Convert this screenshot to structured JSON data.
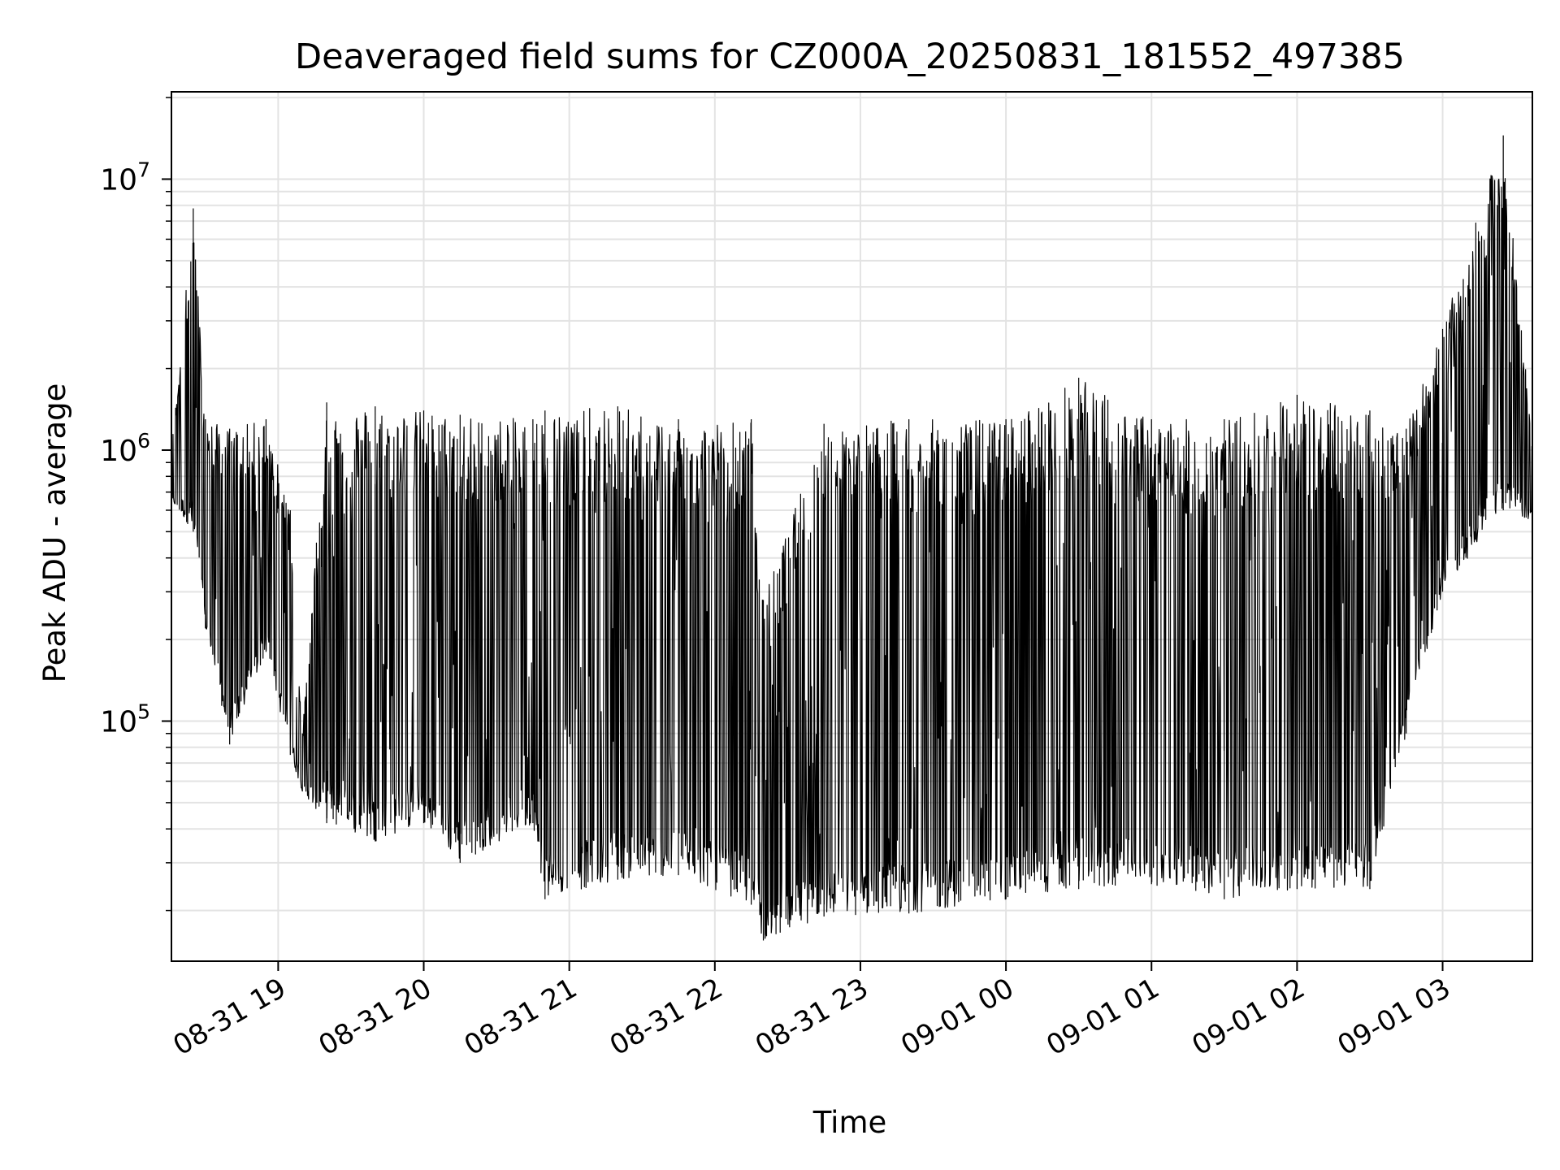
{
  "chart_data": {
    "type": "line",
    "title": "Deaveraged field sums for CZ000A_20250831_181552_497385",
    "xlabel": "Time",
    "ylabel": "Peak ADU - average",
    "yscale": "log",
    "grid": "on (major and minor)",
    "xlim": [
      "2025-08-31 18:16",
      "2025-09-01 03:37"
    ],
    "ylim": [
      13000,
      21000000
    ],
    "x_ticks": [
      {
        "label": "08-31 19",
        "time": "2025-08-31 19:00"
      },
      {
        "label": "08-31 20",
        "time": "2025-08-31 20:00"
      },
      {
        "label": "08-31 21",
        "time": "2025-08-31 21:00"
      },
      {
        "label": "08-31 22",
        "time": "2025-08-31 22:00"
      },
      {
        "label": "08-31 23",
        "time": "2025-08-31 23:00"
      },
      {
        "label": "09-01 00",
        "time": "2025-09-01 00:00"
      },
      {
        "label": "09-01 01",
        "time": "2025-09-01 01:00"
      },
      {
        "label": "09-01 02",
        "time": "2025-09-01 02:00"
      },
      {
        "label": "09-01 03",
        "time": "2025-09-01 03:00"
      }
    ],
    "y_ticks": [
      {
        "base": "10",
        "exp": "5",
        "value": 100000
      },
      {
        "base": "10",
        "exp": "6",
        "value": 1000000
      },
      {
        "base": "10",
        "exp": "7",
        "value": 10000000
      }
    ],
    "series": [
      {
        "color": "#000000",
        "description_points": [
          {
            "x": "2025-08-31 18:16",
            "low": 650000,
            "high": 1000000
          },
          {
            "x": "2025-08-31 18:25",
            "low": 500000,
            "high": 7800000
          },
          {
            "x": "2025-08-31 18:30",
            "low": 220000,
            "high": 1300000
          },
          {
            "x": "2025-08-31 18:40",
            "low": 82000,
            "high": 1200000
          },
          {
            "x": "2025-08-31 18:55",
            "low": 180000,
            "high": 1300000
          },
          {
            "x": "2025-08-31 19:05",
            "low": 75000,
            "high": 600000
          },
          {
            "x": "2025-08-31 19:10",
            "low": 55000,
            "high": 90000
          },
          {
            "x": "2025-08-31 19:20",
            "low": 42000,
            "high": 1500000
          },
          {
            "x": "2025-08-31 19:40",
            "low": 36000,
            "high": 1450000
          },
          {
            "x": "2025-08-31 20:00",
            "low": 42000,
            "high": 1400000
          },
          {
            "x": "2025-08-31 20:15",
            "low": 30000,
            "high": 1350000
          },
          {
            "x": "2025-08-31 20:45",
            "low": 42000,
            "high": 1300000
          },
          {
            "x": "2025-08-31 20:50",
            "low": 22000,
            "high": 1400000
          },
          {
            "x": "2025-08-31 21:20",
            "low": 26000,
            "high": 1450000
          },
          {
            "x": "2025-08-31 21:45",
            "low": 27000,
            "high": 1300000
          },
          {
            "x": "2025-08-31 22:15",
            "low": 21000,
            "high": 1300000
          },
          {
            "x": "2025-08-31 22:20",
            "low": 15500,
            "high": 280000
          },
          {
            "x": "2025-08-31 22:45",
            "low": 19000,
            "high": 1250000
          },
          {
            "x": "2025-08-31 23:20",
            "low": 19500,
            "high": 1300000
          },
          {
            "x": "2025-09-01 00:00",
            "low": 22000,
            "high": 1300000
          },
          {
            "x": "2025-09-01 00:30",
            "low": 24000,
            "high": 1850000
          },
          {
            "x": "2025-09-01 01:00",
            "low": 25000,
            "high": 1300000
          },
          {
            "x": "2025-09-01 01:30",
            "low": 22000,
            "high": 1300000
          },
          {
            "x": "2025-09-01 02:00",
            "low": 24000,
            "high": 1600000
          },
          {
            "x": "2025-09-01 02:30",
            "low": 24000,
            "high": 1400000
          },
          {
            "x": "2025-09-01 02:45",
            "low": 90000,
            "high": 1200000
          },
          {
            "x": "2025-09-01 03:00",
            "low": 300000,
            "high": 2800000
          },
          {
            "x": "2025-09-01 03:25",
            "low": 600000,
            "high": 14500000
          },
          {
            "x": "2025-09-01 03:37",
            "low": 550000,
            "high": 1100000
          }
        ]
      }
    ]
  }
}
